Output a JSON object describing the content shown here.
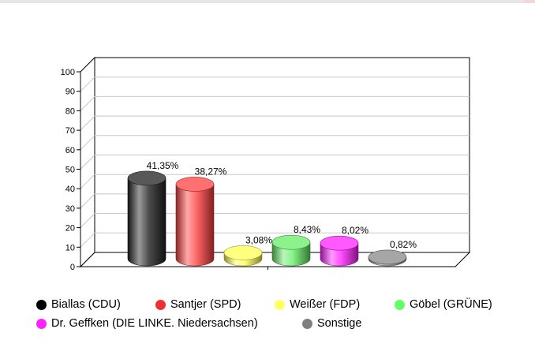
{
  "chart_data": {
    "type": "bar",
    "categories": [
      "Biallas (CDU)",
      "Santjer (SPD)",
      "Weißer (FDP)",
      "Göbel (GRÜNE)",
      "Dr. Geffken (DIE LINKE. Niedersachsen)",
      "Sonstige"
    ],
    "values": [
      41.35,
      38.27,
      3.08,
      8.43,
      8.02,
      0.82
    ],
    "data_labels": [
      "41,35%",
      "38,27%",
      "3,08%",
      "8,43%",
      "8,02%",
      "0,82%"
    ],
    "colors": [
      "#202020",
      "#ff4040",
      "#ffff55",
      "#66ee66",
      "#ff22ff",
      "#888888"
    ],
    "ylim": [
      0,
      100
    ],
    "yticks": [
      "0",
      "10",
      "20",
      "30",
      "40",
      "50",
      "60",
      "70",
      "80",
      "90",
      "100"
    ],
    "grid": true,
    "legend_position": "bottom",
    "style": "3d-cylinder"
  },
  "legend": {
    "items": [
      {
        "label": "Biallas (CDU)",
        "color": "#000000"
      },
      {
        "label": "Santjer (SPD)",
        "color": "#f03030"
      },
      {
        "label": "Weißer (FDP)",
        "color": "#ffff66"
      },
      {
        "label": "Göbel (GRÜNE)",
        "color": "#66ff66"
      },
      {
        "label": "Dr. Geffken (DIE LINKE. Niedersachsen)",
        "color": "#ff22ff"
      },
      {
        "label": "Sonstige",
        "color": "#808080"
      }
    ]
  }
}
